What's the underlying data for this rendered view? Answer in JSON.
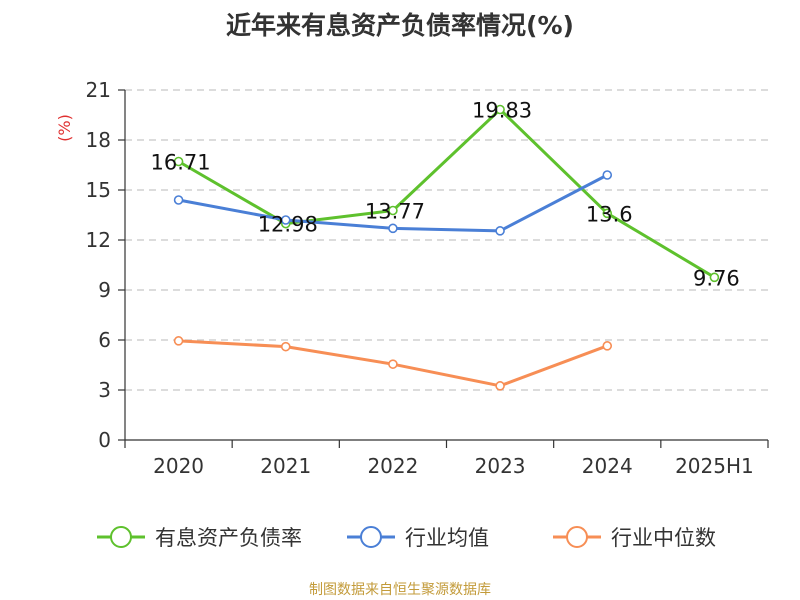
{
  "title": "近年来有息资产负债率情况(%)",
  "source": "制图数据来自恒生聚源数据库",
  "chart_data": {
    "type": "line",
    "ylabel": "(%)",
    "ylim": [
      0,
      21
    ],
    "yticks": [
      0,
      3,
      6,
      9,
      12,
      15,
      18,
      21
    ],
    "grid": true,
    "legend": "bottom",
    "categories": [
      "2020",
      "2021",
      "2022",
      "2023",
      "2024",
      "2025H1"
    ],
    "series": [
      {
        "name": "有息资产负债率",
        "color": "#5ec12d",
        "values": [
          16.71,
          12.98,
          13.77,
          19.83,
          13.6,
          9.76
        ],
        "show_labels": true
      },
      {
        "name": "行业均值",
        "color": "#4a7fd6",
        "values": [
          14.4,
          13.2,
          12.7,
          12.55,
          15.9,
          null
        ],
        "show_labels": false
      },
      {
        "name": "行业中位数",
        "color": "#f78e55",
        "values": [
          5.95,
          5.6,
          4.55,
          3.25,
          5.65,
          null
        ],
        "show_labels": false
      }
    ]
  }
}
